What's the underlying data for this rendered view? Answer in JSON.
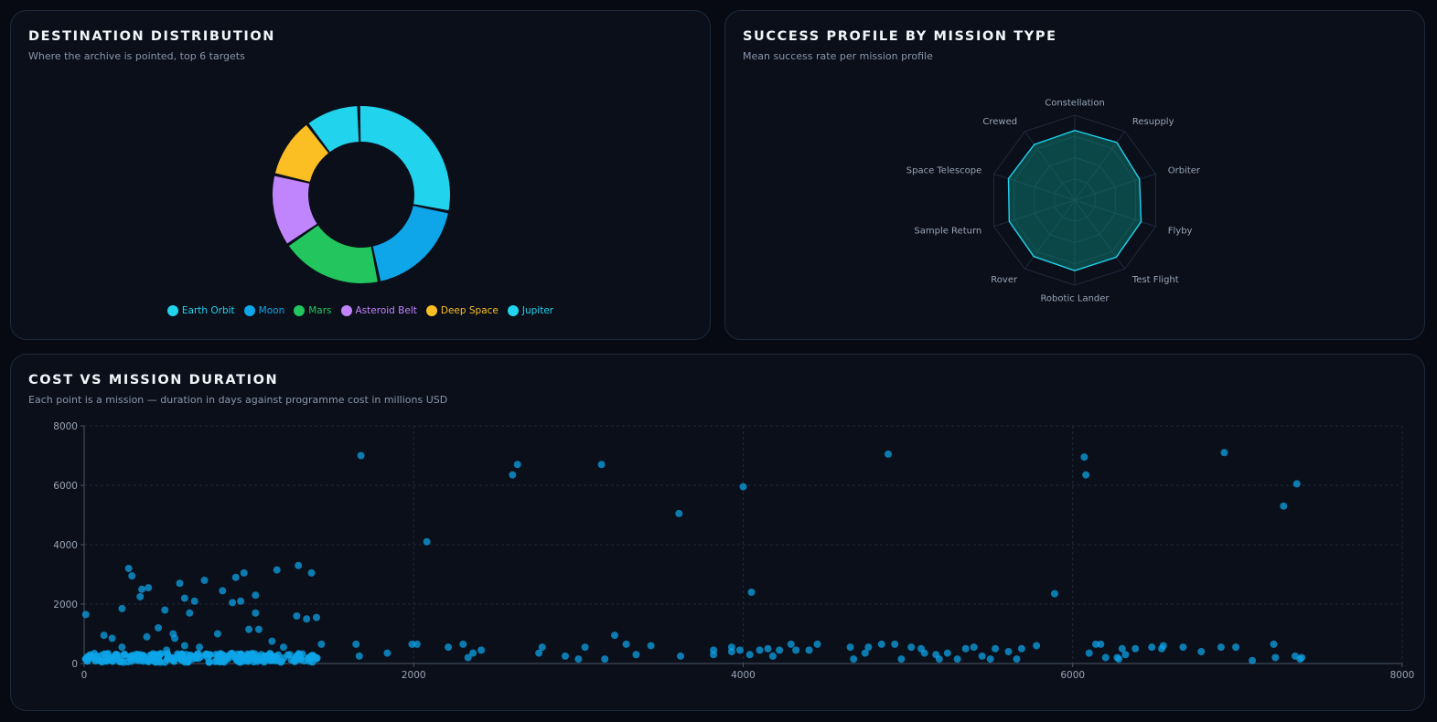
{
  "colors": {
    "earth_orbit": "#22d3ee",
    "moon": "#0ea5e9",
    "mars": "#22c55e",
    "asteroid_belt": "#c084fc",
    "deep_space": "#fbbf24",
    "jupiter": "#22d3ee",
    "radar_fill": "#0f766e",
    "radar_stroke": "#22d3ee",
    "scatter_point": "#0ea5e9"
  },
  "cards": {
    "destinations": {
      "title": "DESTINATION DISTRIBUTION",
      "subtitle": "Where the archive is pointed, top 6 targets"
    },
    "success": {
      "title": "SUCCESS PROFILE BY MISSION TYPE",
      "subtitle": "Mean success rate per mission profile"
    },
    "cost": {
      "title": "COST VS MISSION DURATION",
      "subtitle": "Each point is a mission — duration in days against programme cost in millions USD"
    }
  },
  "chart_data": [
    {
      "type": "pie",
      "variant": "donut",
      "title": "DESTINATION DISTRIBUTION",
      "subtitle": "Where the archive is pointed, top 6 targets",
      "categories": [
        "Earth Orbit",
        "Moon",
        "Mars",
        "Asteroid Belt",
        "Deep Space",
        "Jupiter"
      ],
      "values": [
        26,
        17,
        17,
        12,
        10,
        9
      ],
      "colors": [
        "#22d3ee",
        "#0ea5e9",
        "#22c55e",
        "#c084fc",
        "#fbbf24",
        "#22d3ee"
      ],
      "legend_position": "bottom"
    },
    {
      "type": "radar",
      "title": "SUCCESS PROFILE BY MISSION TYPE",
      "subtitle": "Mean success rate per mission profile",
      "categories": [
        "Constellation",
        "Resupply",
        "Orbiter",
        "Flyby",
        "Test Flight",
        "Robotic Lander",
        "Rover",
        "Sample Return",
        "Space Telescope",
        "Crewed"
      ],
      "values": [
        82,
        84,
        80,
        82,
        83,
        83,
        82,
        81,
        82,
        81
      ],
      "range": [
        0,
        100
      ]
    },
    {
      "type": "scatter",
      "title": "COST VS MISSION DURATION",
      "subtitle": "Each point is a mission — duration in days against programme cost in millions USD",
      "xlim": [
        0,
        8000
      ],
      "ylim": [
        0,
        8000
      ],
      "xticks": [
        0,
        2000,
        4000,
        6000,
        8000
      ],
      "yticks": [
        0,
        2000,
        4000,
        6000,
        8000
      ],
      "grid": true,
      "points": [
        [
          10,
          1650
        ],
        [
          270,
          3200
        ],
        [
          290,
          2950
        ],
        [
          350,
          2500
        ],
        [
          340,
          2250
        ],
        [
          390,
          2550
        ],
        [
          230,
          1850
        ],
        [
          450,
          1200
        ],
        [
          490,
          1800
        ],
        [
          580,
          2700
        ],
        [
          610,
          2200
        ],
        [
          640,
          1700
        ],
        [
          670,
          2100
        ],
        [
          730,
          2800
        ],
        [
          840,
          2450
        ],
        [
          900,
          2050
        ],
        [
          950,
          2100
        ],
        [
          920,
          2900
        ],
        [
          970,
          3050
        ],
        [
          1040,
          2300
        ],
        [
          1040,
          1700
        ],
        [
          1060,
          1150
        ],
        [
          1170,
          3150
        ],
        [
          1300,
          3300
        ],
        [
          1380,
          3050
        ],
        [
          1290,
          1600
        ],
        [
          1350,
          1500
        ],
        [
          1410,
          1550
        ],
        [
          1680,
          7000
        ],
        [
          2080,
          4100
        ],
        [
          2600,
          6350
        ],
        [
          2630,
          6700
        ],
        [
          3140,
          6700
        ],
        [
          3610,
          5050
        ],
        [
          4000,
          5950
        ],
        [
          4050,
          2400
        ],
        [
          4880,
          7050
        ],
        [
          5890,
          2350
        ],
        [
          6070,
          6950
        ],
        [
          6080,
          6350
        ],
        [
          6920,
          7100
        ],
        [
          7280,
          5300
        ],
        [
          7360,
          6050
        ],
        [
          120,
          950
        ],
        [
          170,
          850
        ],
        [
          230,
          550
        ],
        [
          340,
          300
        ],
        [
          380,
          900
        ],
        [
          540,
          1000
        ],
        [
          550,
          850
        ],
        [
          500,
          450
        ],
        [
          610,
          600
        ],
        [
          700,
          550
        ],
        [
          810,
          1000
        ],
        [
          1000,
          1150
        ],
        [
          1140,
          750
        ],
        [
          1210,
          550
        ],
        [
          1250,
          300
        ],
        [
          1440,
          650
        ],
        [
          1650,
          650
        ],
        [
          1670,
          250
        ],
        [
          1840,
          350
        ],
        [
          1990,
          650
        ],
        [
          2020,
          650
        ],
        [
          2210,
          550
        ],
        [
          2300,
          650
        ],
        [
          2330,
          200
        ],
        [
          2360,
          350
        ],
        [
          2410,
          450
        ],
        [
          2760,
          350
        ],
        [
          2780,
          550
        ],
        [
          2920,
          250
        ],
        [
          3000,
          150
        ],
        [
          3040,
          550
        ],
        [
          3160,
          150
        ],
        [
          3220,
          950
        ],
        [
          3290,
          650
        ],
        [
          3350,
          300
        ],
        [
          3440,
          600
        ],
        [
          3620,
          250
        ],
        [
          3820,
          300
        ],
        [
          3820,
          450
        ],
        [
          3930,
          550
        ],
        [
          3930,
          400
        ],
        [
          3980,
          450
        ],
        [
          4040,
          300
        ],
        [
          4100,
          450
        ],
        [
          4150,
          500
        ],
        [
          4180,
          250
        ],
        [
          4220,
          450
        ],
        [
          4290,
          650
        ],
        [
          4320,
          450
        ],
        [
          4400,
          450
        ],
        [
          4450,
          650
        ],
        [
          4650,
          550
        ],
        [
          4670,
          150
        ],
        [
          4740,
          350
        ],
        [
          4760,
          550
        ],
        [
          4840,
          650
        ],
        [
          4920,
          650
        ],
        [
          4960,
          150
        ],
        [
          5020,
          550
        ],
        [
          5080,
          500
        ],
        [
          5100,
          350
        ],
        [
          5170,
          300
        ],
        [
          5190,
          150
        ],
        [
          5240,
          350
        ],
        [
          5300,
          150
        ],
        [
          5350,
          500
        ],
        [
          5400,
          550
        ],
        [
          5450,
          250
        ],
        [
          5500,
          150
        ],
        [
          5530,
          500
        ],
        [
          5610,
          400
        ],
        [
          5660,
          150
        ],
        [
          5690,
          500
        ],
        [
          5780,
          600
        ],
        [
          6100,
          350
        ],
        [
          6140,
          650
        ],
        [
          6170,
          650
        ],
        [
          6200,
          200
        ],
        [
          6270,
          200
        ],
        [
          6280,
          150
        ],
        [
          6300,
          500
        ],
        [
          6320,
          300
        ],
        [
          6380,
          500
        ],
        [
          6480,
          550
        ],
        [
          6540,
          500
        ],
        [
          6550,
          600
        ],
        [
          6670,
          550
        ],
        [
          6780,
          400
        ],
        [
          6900,
          550
        ],
        [
          6990,
          550
        ],
        [
          7090,
          100
        ],
        [
          7220,
          650
        ],
        [
          7230,
          200
        ],
        [
          7350,
          250
        ],
        [
          7380,
          150
        ],
        [
          7390,
          200
        ]
      ]
    }
  ]
}
